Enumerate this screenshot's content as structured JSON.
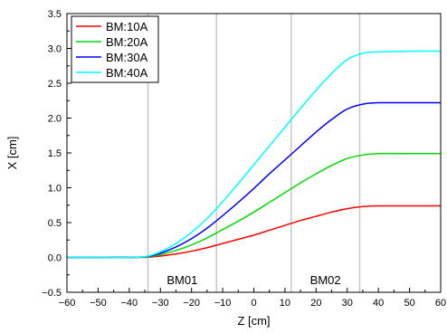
{
  "chart_data": {
    "type": "line",
    "xlabel": "Z [cm]",
    "ylabel": "X [cm]",
    "xlim": [
      -60,
      60
    ],
    "ylim": [
      -0.5,
      3.5
    ],
    "x_ticks": [
      -60,
      -50,
      -40,
      -30,
      -20,
      -10,
      0,
      10,
      20,
      30,
      40,
      50,
      60
    ],
    "y_ticks": [
      -0.5,
      0.0,
      0.5,
      1.0,
      1.5,
      2.0,
      2.5,
      3.0,
      3.5
    ],
    "x_tick_labels": [
      "−60",
      "−50",
      "−40",
      "−30",
      "−20",
      "−10",
      "0",
      "10",
      "20",
      "30",
      "40",
      "50",
      "60"
    ],
    "y_tick_labels": [
      "−0.5",
      "0.0",
      "0.5",
      "1.0",
      "1.5",
      "2.0",
      "2.5",
      "3.0",
      "3.5"
    ],
    "vertical_lines": [
      -34,
      -12,
      12,
      34
    ],
    "annotations": [
      {
        "text": "BM01",
        "x": -23,
        "y": -0.32
      },
      {
        "text": "BM02",
        "x": 23,
        "y": -0.32
      }
    ],
    "legend_position": "top-left",
    "series": [
      {
        "name": "BM:10A",
        "color": "#ff0000",
        "x": [
          -60,
          -40,
          -34,
          -30,
          -25,
          -20,
          -15,
          -10,
          -5,
          0,
          5,
          10,
          15,
          20,
          25,
          30,
          35,
          40,
          50,
          60
        ],
        "y": [
          0,
          0,
          0.005,
          0.02,
          0.05,
          0.09,
          0.14,
          0.2,
          0.26,
          0.32,
          0.39,
          0.46,
          0.53,
          0.59,
          0.65,
          0.7,
          0.73,
          0.74,
          0.74,
          0.74
        ]
      },
      {
        "name": "BM:20A",
        "color": "#00dd00",
        "x": [
          -60,
          -40,
          -34,
          -30,
          -25,
          -20,
          -15,
          -10,
          -5,
          0,
          5,
          10,
          15,
          20,
          25,
          30,
          35,
          40,
          50,
          60
        ],
        "y": [
          0,
          0,
          0.01,
          0.04,
          0.1,
          0.18,
          0.28,
          0.4,
          0.52,
          0.65,
          0.79,
          0.93,
          1.07,
          1.2,
          1.32,
          1.42,
          1.47,
          1.49,
          1.49,
          1.49
        ]
      },
      {
        "name": "BM:30A",
        "color": "#0000ff",
        "x": [
          -60,
          -40,
          -34,
          -30,
          -25,
          -20,
          -15,
          -10,
          -5,
          0,
          5,
          10,
          15,
          20,
          25,
          30,
          35,
          40,
          50,
          60
        ],
        "y": [
          0,
          0,
          0.015,
          0.06,
          0.15,
          0.27,
          0.42,
          0.6,
          0.79,
          0.99,
          1.2,
          1.4,
          1.6,
          1.8,
          1.98,
          2.13,
          2.2,
          2.22,
          2.22,
          2.22
        ]
      },
      {
        "name": "BM:40A",
        "color": "#00ffff",
        "x": [
          -60,
          -40,
          -34,
          -30,
          -25,
          -20,
          -15,
          -10,
          -5,
          0,
          5,
          10,
          15,
          20,
          25,
          30,
          35,
          40,
          50,
          60
        ],
        "y": [
          0,
          0,
          0.02,
          0.08,
          0.2,
          0.36,
          0.56,
          0.8,
          1.06,
          1.33,
          1.6,
          1.87,
          2.14,
          2.4,
          2.64,
          2.84,
          2.93,
          2.95,
          2.96,
          2.96
        ]
      }
    ]
  }
}
